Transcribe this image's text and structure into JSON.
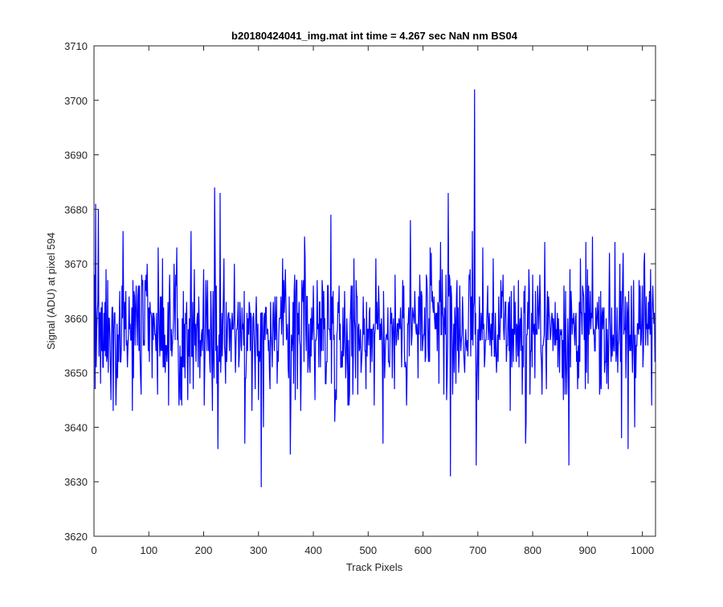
{
  "chart_data": {
    "type": "line",
    "title": "b20180424041_img.mat int time = 4.267 sec  NaN nm BS04",
    "xlabel": "Track Pixels",
    "ylabel": "Signal (ADU) at pixel 594",
    "xlim": [
      0,
      1024
    ],
    "ylim": [
      3620,
      3710
    ],
    "xticks": [
      0,
      100,
      200,
      300,
      400,
      500,
      600,
      700,
      800,
      900,
      1000
    ],
    "yticks": [
      3620,
      3630,
      3640,
      3650,
      3660,
      3670,
      3680,
      3690,
      3700,
      3710
    ],
    "grid": false,
    "series": [
      {
        "color": "#0000ff",
        "n_points": 1024,
        "x_start": 1,
        "mean": 3658,
        "std": 6,
        "values_shown_as": "dense noise trace, values 1..1024; listed anchor values below",
        "anchor_points": [
          {
            "x": 2,
            "y": 3647
          },
          {
            "x": 3,
            "y": 3681
          },
          {
            "x": 8,
            "y": 3680
          },
          {
            "x": 35,
            "y": 3643
          },
          {
            "x": 53,
            "y": 3676
          },
          {
            "x": 70,
            "y": 3643
          },
          {
            "x": 93,
            "y": 3667
          },
          {
            "x": 117,
            "y": 3673
          },
          {
            "x": 136,
            "y": 3644
          },
          {
            "x": 177,
            "y": 3676
          },
          {
            "x": 220,
            "y": 3684
          },
          {
            "x": 226,
            "y": 3636
          },
          {
            "x": 230,
            "y": 3683
          },
          {
            "x": 275,
            "y": 3637
          },
          {
            "x": 300,
            "y": 3645
          },
          {
            "x": 305,
            "y": 3629
          },
          {
            "x": 358,
            "y": 3635
          },
          {
            "x": 384,
            "y": 3675
          },
          {
            "x": 432,
            "y": 3679
          },
          {
            "x": 440,
            "y": 3645
          },
          {
            "x": 463,
            "y": 3644
          },
          {
            "x": 527,
            "y": 3637
          },
          {
            "x": 577,
            "y": 3678
          },
          {
            "x": 632,
            "y": 3674
          },
          {
            "x": 646,
            "y": 3683
          },
          {
            "x": 650,
            "y": 3631
          },
          {
            "x": 690,
            "y": 3676
          },
          {
            "x": 694,
            "y": 3702
          },
          {
            "x": 697,
            "y": 3633
          },
          {
            "x": 787,
            "y": 3637
          },
          {
            "x": 822,
            "y": 3674
          },
          {
            "x": 866,
            "y": 3633
          },
          {
            "x": 950,
            "y": 3674
          },
          {
            "x": 962,
            "y": 3638
          },
          {
            "x": 974,
            "y": 3636
          },
          {
            "x": 1003,
            "y": 3670
          },
          {
            "x": 1019,
            "y": 3666
          }
        ]
      }
    ]
  }
}
